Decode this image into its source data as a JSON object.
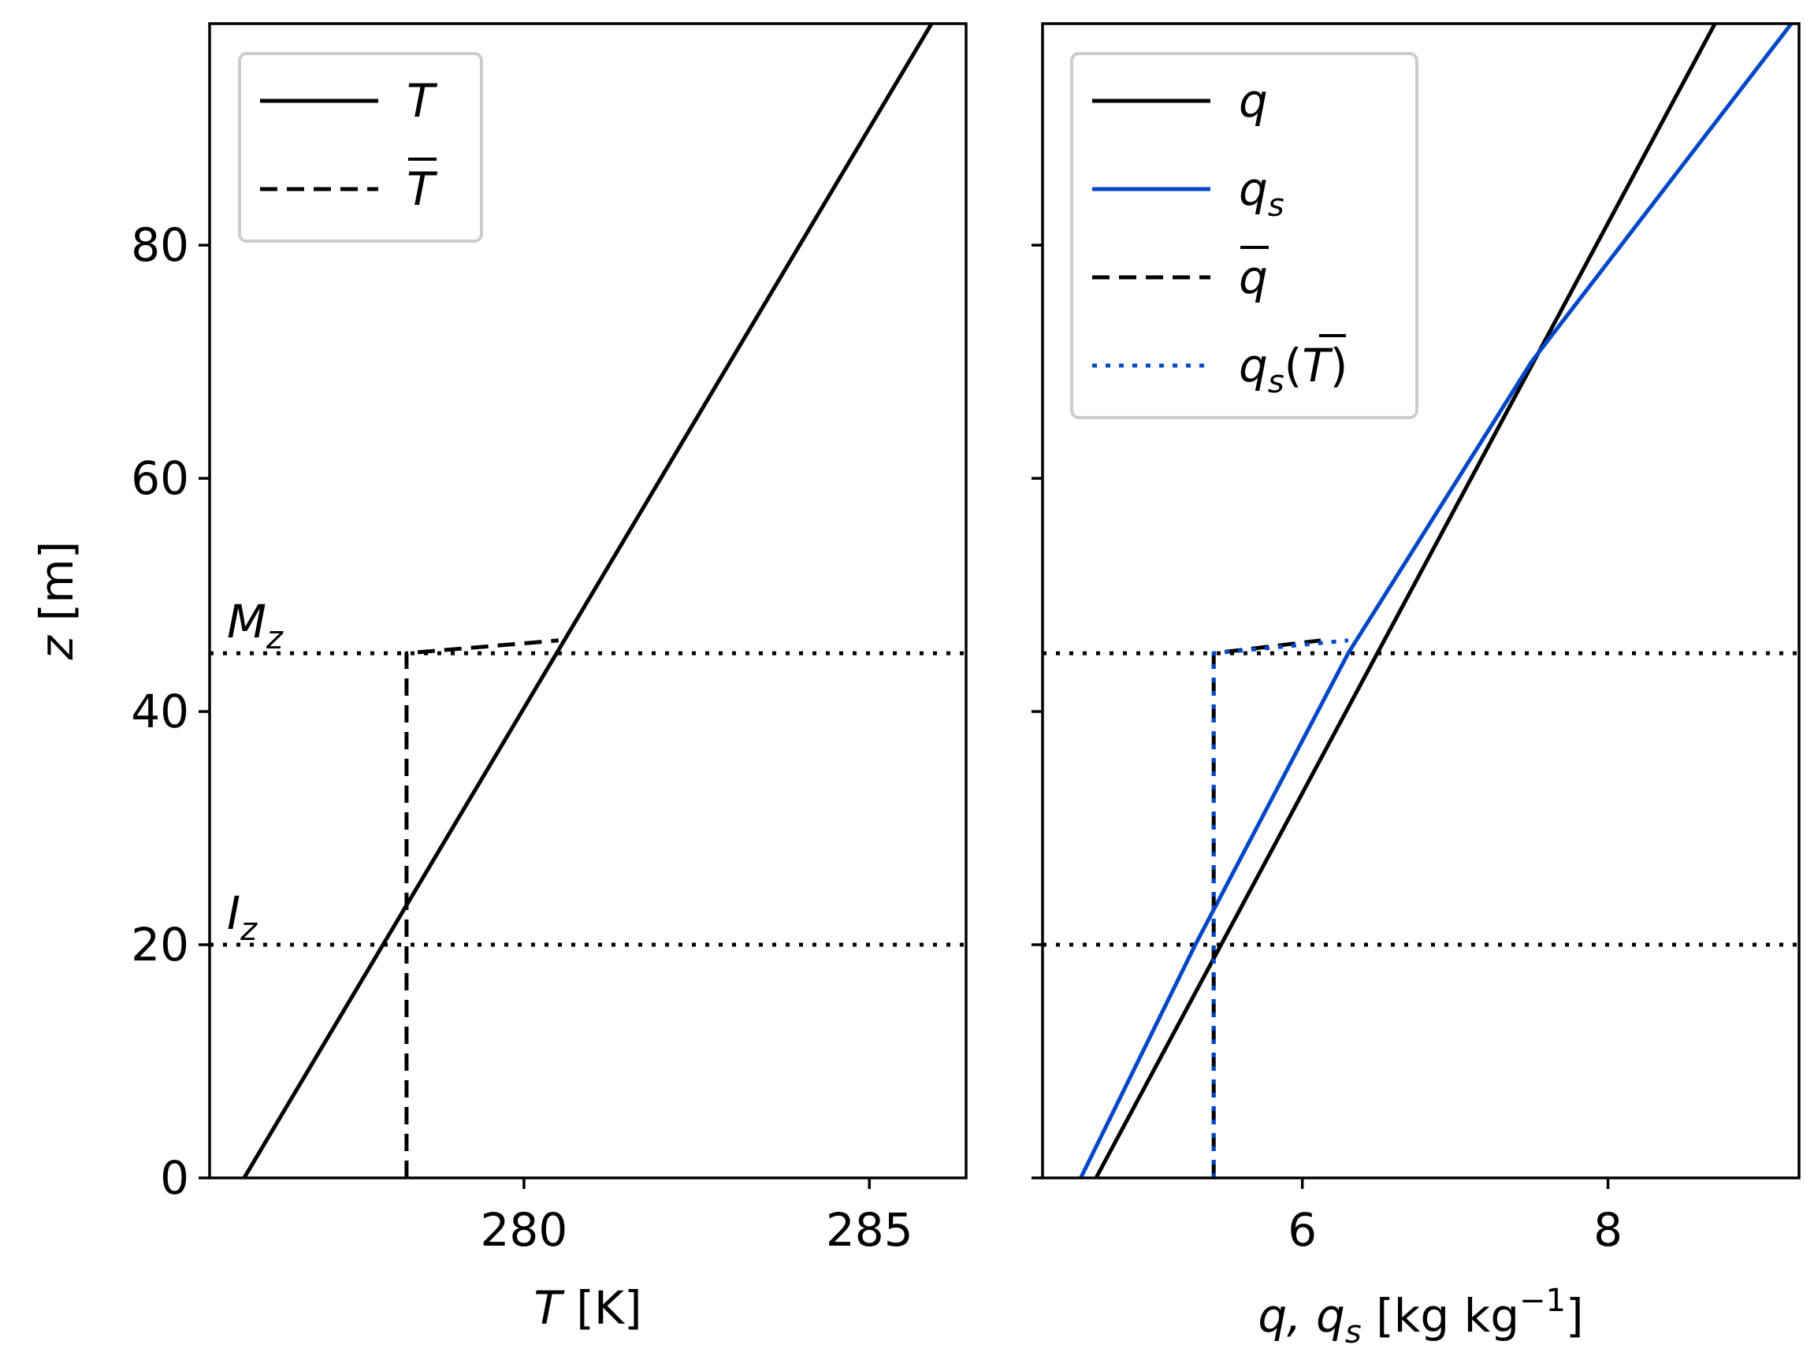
{
  "chart_data": [
    {
      "type": "line",
      "xlabel_main": "T",
      "xlabel_unit": " [K]",
      "ylabel_main": "z",
      "ylabel_unit": " [m]",
      "xlim": [
        275.45,
        286.4
      ],
      "ylim": [
        0,
        99
      ],
      "xticks": [
        280,
        285
      ],
      "yticks": [
        0,
        20,
        40,
        60,
        80
      ],
      "legend_position": "top-left",
      "series": [
        {
          "name": "T",
          "style": "solid",
          "color": "#000000",
          "x": [
            275.95,
            285.9
          ],
          "y": [
            0,
            99
          ]
        },
        {
          "name": "T̄",
          "style": "dashed",
          "color": "#000000",
          "x": [
            278.3,
            278.3,
            280.5
          ],
          "y": [
            0,
            45,
            46.1
          ]
        }
      ],
      "hlines": [
        {
          "y": 45,
          "label": "M",
          "sub": "z"
        },
        {
          "y": 20,
          "label": "I",
          "sub": "z"
        }
      ]
    },
    {
      "type": "line",
      "xlabel_main": "q, q",
      "xlabel_sub": "s",
      "xlabel_unit": " [kg kg",
      "xlabel_sup": "−1",
      "xlabel_end": "]",
      "xlim": [
        4.3,
        9.25
      ],
      "ylim": [
        0,
        99
      ],
      "xticks": [
        6,
        8
      ],
      "yticks": [
        0,
        20,
        40,
        60,
        80
      ],
      "legend_position": "top-left",
      "series": [
        {
          "name": "q",
          "style": "solid",
          "color": "#000000",
          "x": [
            4.65,
            8.7
          ],
          "y": [
            0,
            99
          ]
        },
        {
          "name": "q_s",
          "style": "solid",
          "color": "#0047c8",
          "x": [
            4.55,
            5.3,
            6.3,
            7.5,
            9.2
          ],
          "y": [
            0,
            20,
            45,
            70,
            99
          ]
        },
        {
          "name": "q̄",
          "style": "dashed",
          "color": "#000000",
          "x": [
            5.42,
            5.42,
            6.12
          ],
          "y": [
            0,
            45,
            46.1
          ]
        },
        {
          "name": "q_s(T̄)",
          "style": "dotted",
          "color": "#0047c8",
          "x": [
            5.42,
            5.42,
            6.3
          ],
          "y": [
            0,
            45,
            46.1
          ]
        }
      ],
      "hlines": [
        {
          "y": 45
        },
        {
          "y": 20
        }
      ]
    }
  ],
  "legend_left": [
    {
      "label": "T",
      "style": "solid",
      "color": "#000000"
    },
    {
      "label": "T",
      "overbar": true,
      "style": "dashed",
      "color": "#000000"
    }
  ],
  "legend_right": [
    {
      "label": "q",
      "style": "solid",
      "color": "#000000"
    },
    {
      "label": "q",
      "sub": "s",
      "style": "solid",
      "color": "#0047c8"
    },
    {
      "label": "q",
      "overbar": true,
      "style": "dashed",
      "color": "#000000"
    },
    {
      "label": "q",
      "sub": "s",
      "paren": "T",
      "style": "dotted",
      "color": "#0047c8"
    }
  ]
}
